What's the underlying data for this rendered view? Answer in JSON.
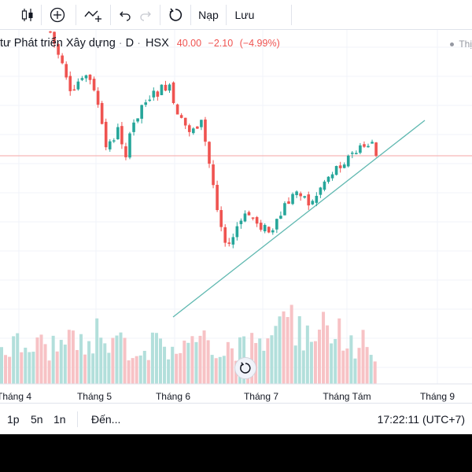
{
  "toolbar": {
    "chart_type_icon": "candles-icon",
    "add_indicator_icon": "plus-circle-icon",
    "compare_icon": "compare-add-icon",
    "undo_icon": "undo-icon",
    "redo_icon": "redo-icon",
    "refresh_icon": "refresh-icon",
    "load_label": "Nạp",
    "save_label": "Lưu"
  },
  "legend": {
    "title": "tư Phát triển Xây dựng",
    "interval": "D",
    "exchange": "HSX",
    "price": "40.00",
    "change": "−2.10",
    "change_pct": "(−4.99%)"
  },
  "right_label": "Thị",
  "colors": {
    "up": "#26a69a",
    "down": "#ef5350",
    "vol_up": "#b2dfdb",
    "vol_down": "#f7c2c5",
    "trendline": "#5fb8b0",
    "price_line": "#f4a6a6",
    "grid": "#f0f3fa"
  },
  "chart_data": {
    "type": "candlestick",
    "x_labels": [
      "Tháng 4",
      "Tháng 5",
      "Tháng 6",
      "Tháng 7",
      "Tháng Tám",
      "Tháng 9"
    ],
    "last_close": 40.0
  },
  "bottom_bar": {
    "range_1d": "1p",
    "range_5d": "5n",
    "range_1y": "1n",
    "goto": "Đến...",
    "clock": "17:22:11 (UTC+7)"
  }
}
